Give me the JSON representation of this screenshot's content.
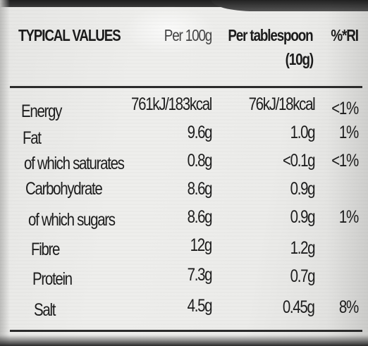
{
  "table": {
    "headers": {
      "typical": "TYPICAL VALUES",
      "per100": "Per 100g",
      "perTbsp": "Per tablespoon",
      "perTbspSize": "(10g)",
      "ri": "%*RI"
    },
    "rows": [
      {
        "nutrient": "Energy",
        "per100": "761kJ/183kcal",
        "perTbsp": "76kJ/18kcal",
        "ri": "<1%"
      },
      {
        "nutrient": "Fat",
        "per100": "9.6g",
        "perTbsp": "1.0g",
        "ri": "1%"
      },
      {
        "nutrient": "of which saturates",
        "per100": "0.8g",
        "perTbsp": "<0.1g",
        "ri": "<1%"
      },
      {
        "nutrient": "Carbohydrate",
        "per100": "8.6g",
        "perTbsp": "0.9g",
        "ri": ""
      },
      {
        "nutrient": "of which sugars",
        "per100": "8.6g",
        "perTbsp": "0.9g",
        "ri": "1%"
      },
      {
        "nutrient": "Fibre",
        "per100": "12g",
        "perTbsp": "1.2g",
        "ri": ""
      },
      {
        "nutrient": "Protein",
        "per100": "7.3g",
        "perTbsp": "0.7g",
        "ri": ""
      },
      {
        "nutrient": "Salt",
        "per100": "4.5g",
        "perTbsp": "0.45g",
        "ri": "8%"
      }
    ]
  }
}
